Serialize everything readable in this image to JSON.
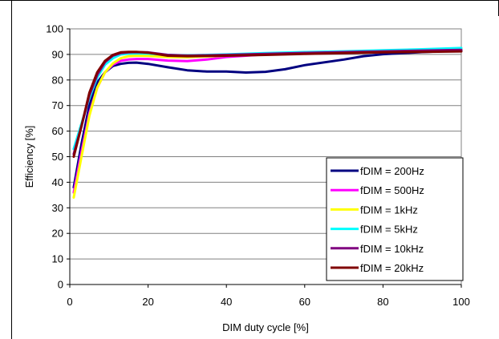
{
  "chart_data": {
    "type": "line",
    "title": "",
    "xlabel": "DIM duty cycle [%]",
    "ylabel": "Efficiency [%]",
    "xlim": [
      0,
      100
    ],
    "ylim": [
      0,
      100
    ],
    "x_ticks": [
      0,
      20,
      40,
      60,
      80,
      100
    ],
    "y_ticks": [
      0,
      10,
      20,
      30,
      40,
      50,
      60,
      70,
      80,
      90,
      100
    ],
    "grid": "horizontal",
    "legend_position": "bottom-right",
    "series": [
      {
        "name": "fDIM = 200Hz",
        "color": "#000080",
        "points": [
          [
            1,
            38
          ],
          [
            3,
            55
          ],
          [
            5,
            70
          ],
          [
            7,
            79
          ],
          [
            9,
            83
          ],
          [
            11,
            85.5
          ],
          [
            13,
            86.3
          ],
          [
            15,
            86.7
          ],
          [
            17,
            86.8
          ],
          [
            20,
            86.3
          ],
          [
            25,
            85
          ],
          [
            30,
            83.8
          ],
          [
            35,
            83.3
          ],
          [
            40,
            83.3
          ],
          [
            45,
            82.9
          ],
          [
            50,
            83.2
          ],
          [
            55,
            84.2
          ],
          [
            60,
            85.8
          ],
          [
            70,
            88
          ],
          [
            75,
            89.3
          ],
          [
            80,
            90.1
          ],
          [
            90,
            90.9
          ],
          [
            100,
            91.5
          ]
        ]
      },
      {
        "name": "fDIM = 500Hz",
        "color": "#FF00FF",
        "points": [
          [
            1,
            36
          ],
          [
            3,
            52
          ],
          [
            5,
            67
          ],
          [
            7,
            77
          ],
          [
            9,
            83
          ],
          [
            11,
            86
          ],
          [
            13,
            87.5
          ],
          [
            15,
            88
          ],
          [
            17,
            88.2
          ],
          [
            20,
            88.2
          ],
          [
            25,
            87.6
          ],
          [
            30,
            87.4
          ],
          [
            35,
            88
          ],
          [
            40,
            89
          ],
          [
            50,
            90
          ],
          [
            60,
            90.5
          ],
          [
            70,
            90.8
          ],
          [
            80,
            91.2
          ],
          [
            90,
            91.6
          ],
          [
            100,
            92
          ]
        ]
      },
      {
        "name": "fDIM = 1kHz",
        "color": "#FFFF00",
        "points": [
          [
            1,
            34
          ],
          [
            3,
            50
          ],
          [
            5,
            66
          ],
          [
            7,
            77
          ],
          [
            9,
            83
          ],
          [
            11,
            86.5
          ],
          [
            13,
            88.5
          ],
          [
            15,
            89.3
          ],
          [
            17,
            89.5
          ],
          [
            20,
            89.4
          ],
          [
            25,
            89
          ],
          [
            30,
            88.9
          ],
          [
            40,
            89.5
          ],
          [
            50,
            90.2
          ],
          [
            60,
            90.7
          ],
          [
            70,
            91
          ],
          [
            80,
            91.4
          ],
          [
            90,
            91.8
          ],
          [
            100,
            92.2
          ]
        ]
      },
      {
        "name": "fDIM = 5kHz",
        "color": "#00FFFF",
        "points": [
          [
            1,
            53
          ],
          [
            3,
            63
          ],
          [
            5,
            73
          ],
          [
            7,
            81
          ],
          [
            9,
            86
          ],
          [
            11,
            88.5
          ],
          [
            13,
            90
          ],
          [
            15,
            90.3
          ],
          [
            17,
            90.4
          ],
          [
            20,
            90.3
          ],
          [
            25,
            89.8
          ],
          [
            30,
            89.6
          ],
          [
            40,
            90
          ],
          [
            50,
            90.5
          ],
          [
            60,
            90.9
          ],
          [
            70,
            91.2
          ],
          [
            80,
            91.6
          ],
          [
            90,
            92
          ],
          [
            100,
            92.5
          ]
        ]
      },
      {
        "name": "fDIM = 10kHz",
        "color": "#800080",
        "points": [
          [
            1,
            51
          ],
          [
            3,
            62
          ],
          [
            5,
            74
          ],
          [
            7,
            82
          ],
          [
            9,
            87
          ],
          [
            11,
            89.5
          ],
          [
            13,
            90.5
          ],
          [
            15,
            90.8
          ],
          [
            17,
            90.9
          ],
          [
            20,
            90.8
          ],
          [
            25,
            89.8
          ],
          [
            30,
            89.5
          ],
          [
            40,
            89.8
          ],
          [
            50,
            90.2
          ],
          [
            60,
            90.6
          ],
          [
            70,
            90.9
          ],
          [
            80,
            91.2
          ],
          [
            90,
            91.5
          ],
          [
            100,
            91.8
          ]
        ]
      },
      {
        "name": "fDIM = 20kHz",
        "color": "#800000",
        "points": [
          [
            1,
            50
          ],
          [
            3,
            62
          ],
          [
            5,
            75
          ],
          [
            7,
            83
          ],
          [
            9,
            87.5
          ],
          [
            11,
            89.8
          ],
          [
            13,
            90.8
          ],
          [
            15,
            91
          ],
          [
            17,
            91
          ],
          [
            20,
            90.7
          ],
          [
            25,
            89.5
          ],
          [
            30,
            89.3
          ],
          [
            40,
            89.5
          ],
          [
            50,
            89.8
          ],
          [
            60,
            90.2
          ],
          [
            70,
            90.5
          ],
          [
            80,
            90.8
          ],
          [
            90,
            91
          ],
          [
            100,
            91.2
          ]
        ]
      }
    ]
  }
}
